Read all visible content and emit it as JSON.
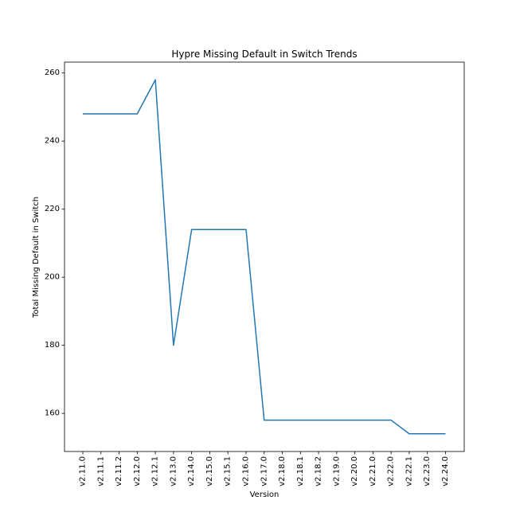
{
  "chart_data": {
    "type": "line",
    "title": "Hypre Missing Default in Switch Trends",
    "xlabel": "Version",
    "ylabel": "Total Missing Default in Switch",
    "categories": [
      "v2.11.0",
      "v2.11.1",
      "v2.11.2",
      "v2.12.0",
      "v2.12.1",
      "v2.13.0",
      "v2.14.0",
      "v2.15.0",
      "v2.15.1",
      "v2.16.0",
      "v2.17.0",
      "v2.18.0",
      "v2.18.1",
      "v2.18.2",
      "v2.19.0",
      "v2.20.0",
      "v2.21.0",
      "v2.22.0",
      "v2.22.1",
      "v2.23.0",
      "v2.24.0"
    ],
    "series": [
      {
        "values": [
          248,
          248,
          248,
          248,
          258,
          180,
          214,
          214,
          214,
          214,
          158,
          158,
          158,
          158,
          158,
          158,
          158,
          158,
          154,
          154,
          154
        ]
      }
    ],
    "yticks": [
      160,
      180,
      200,
      220,
      240,
      260
    ],
    "ylim": [
      148.8,
      263.2
    ],
    "grid": false,
    "legend": "none",
    "line_color": "#1f77b4"
  }
}
